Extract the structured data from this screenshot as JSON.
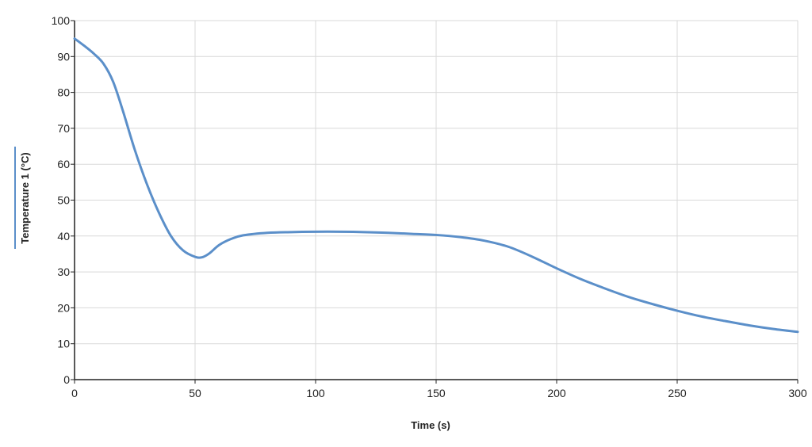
{
  "chart_data": {
    "type": "line",
    "title": "",
    "xlabel": "Time (s)",
    "ylabel": "Temperature 1 (°C)",
    "xlim": [
      0,
      300
    ],
    "ylim": [
      0,
      100
    ],
    "x_ticks": [
      0,
      50,
      100,
      150,
      200,
      250,
      300
    ],
    "y_ticks": [
      0,
      10,
      20,
      30,
      40,
      50,
      60,
      70,
      80,
      90,
      100
    ],
    "grid": true,
    "legend": "none",
    "colors": {
      "series": "#5b8fc9",
      "grid": "#d9d9d9",
      "axis": "#222222",
      "ylabel_marker": "#5b8fc9"
    },
    "series": [
      {
        "color": "#5b8fc9",
        "x": [
          0,
          4,
          8,
          12,
          16,
          20,
          25,
          30,
          35,
          40,
          45,
          50,
          53,
          56,
          60,
          65,
          70,
          80,
          90,
          100,
          110,
          120,
          130,
          140,
          150,
          160,
          170,
          180,
          190,
          200,
          210,
          220,
          230,
          240,
          250,
          260,
          270,
          280,
          290,
          300
        ],
        "y": [
          95,
          93,
          90.8,
          88,
          83,
          75,
          64,
          54.5,
          46.5,
          40,
          36,
          34.2,
          34.1,
          35.2,
          37.5,
          39.2,
          40.2,
          40.9,
          41.1,
          41.2,
          41.2,
          41.1,
          40.9,
          40.6,
          40.3,
          39.7,
          38.7,
          37,
          34.2,
          31,
          28,
          25.4,
          23,
          21,
          19.2,
          17.6,
          16.3,
          15.1,
          14.1,
          13.3
        ]
      }
    ]
  }
}
